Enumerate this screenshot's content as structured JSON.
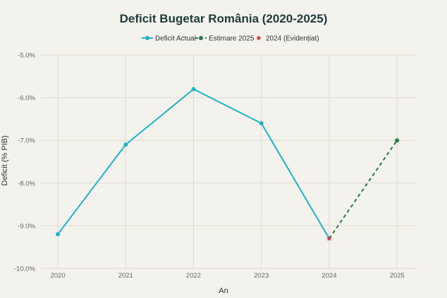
{
  "chart_data": {
    "type": "line",
    "title": "Deficit Bugetar România (2020-2025)",
    "xlabel": "An",
    "ylabel": "Deficit (% PIB)",
    "x": [
      2020,
      2021,
      2022,
      2023,
      2024,
      2025
    ],
    "x_tick_labels": [
      "2020",
      "2021",
      "2022",
      "2023",
      "2024",
      "2025"
    ],
    "y_tick_labels": [
      "-5.0%",
      "-6.0%",
      "-7.0%",
      "-8.0%",
      "-9.0%",
      "-10.0%"
    ],
    "ylim": [
      -10.0,
      -5.0
    ],
    "xlim": [
      2019.75,
      2025.3
    ],
    "y_ticks": [
      -5,
      -6,
      -7,
      -8,
      -9,
      -10
    ],
    "grid": true,
    "legend_position": "top-center",
    "series": [
      {
        "name": "Deficit Actual",
        "style": "solid-line-markers",
        "color": "#1fb3c7",
        "points": [
          {
            "x": 2020,
            "y": -9.2
          },
          {
            "x": 2021,
            "y": -7.1
          },
          {
            "x": 2022,
            "y": -5.8
          },
          {
            "x": 2023,
            "y": -6.6
          },
          {
            "x": 2024,
            "y": -9.3
          }
        ]
      },
      {
        "name": "Estimare 2025",
        "style": "dashed-line-markers",
        "color": "#2a7a4a",
        "points": [
          {
            "x": 2024,
            "y": -9.3
          },
          {
            "x": 2025,
            "y": -7.0
          }
        ]
      },
      {
        "name": "2024 (Evidențiat)",
        "style": "star-marker",
        "color": "#d9363e",
        "points": [
          {
            "x": 2024,
            "y": -9.3
          }
        ]
      }
    ]
  }
}
